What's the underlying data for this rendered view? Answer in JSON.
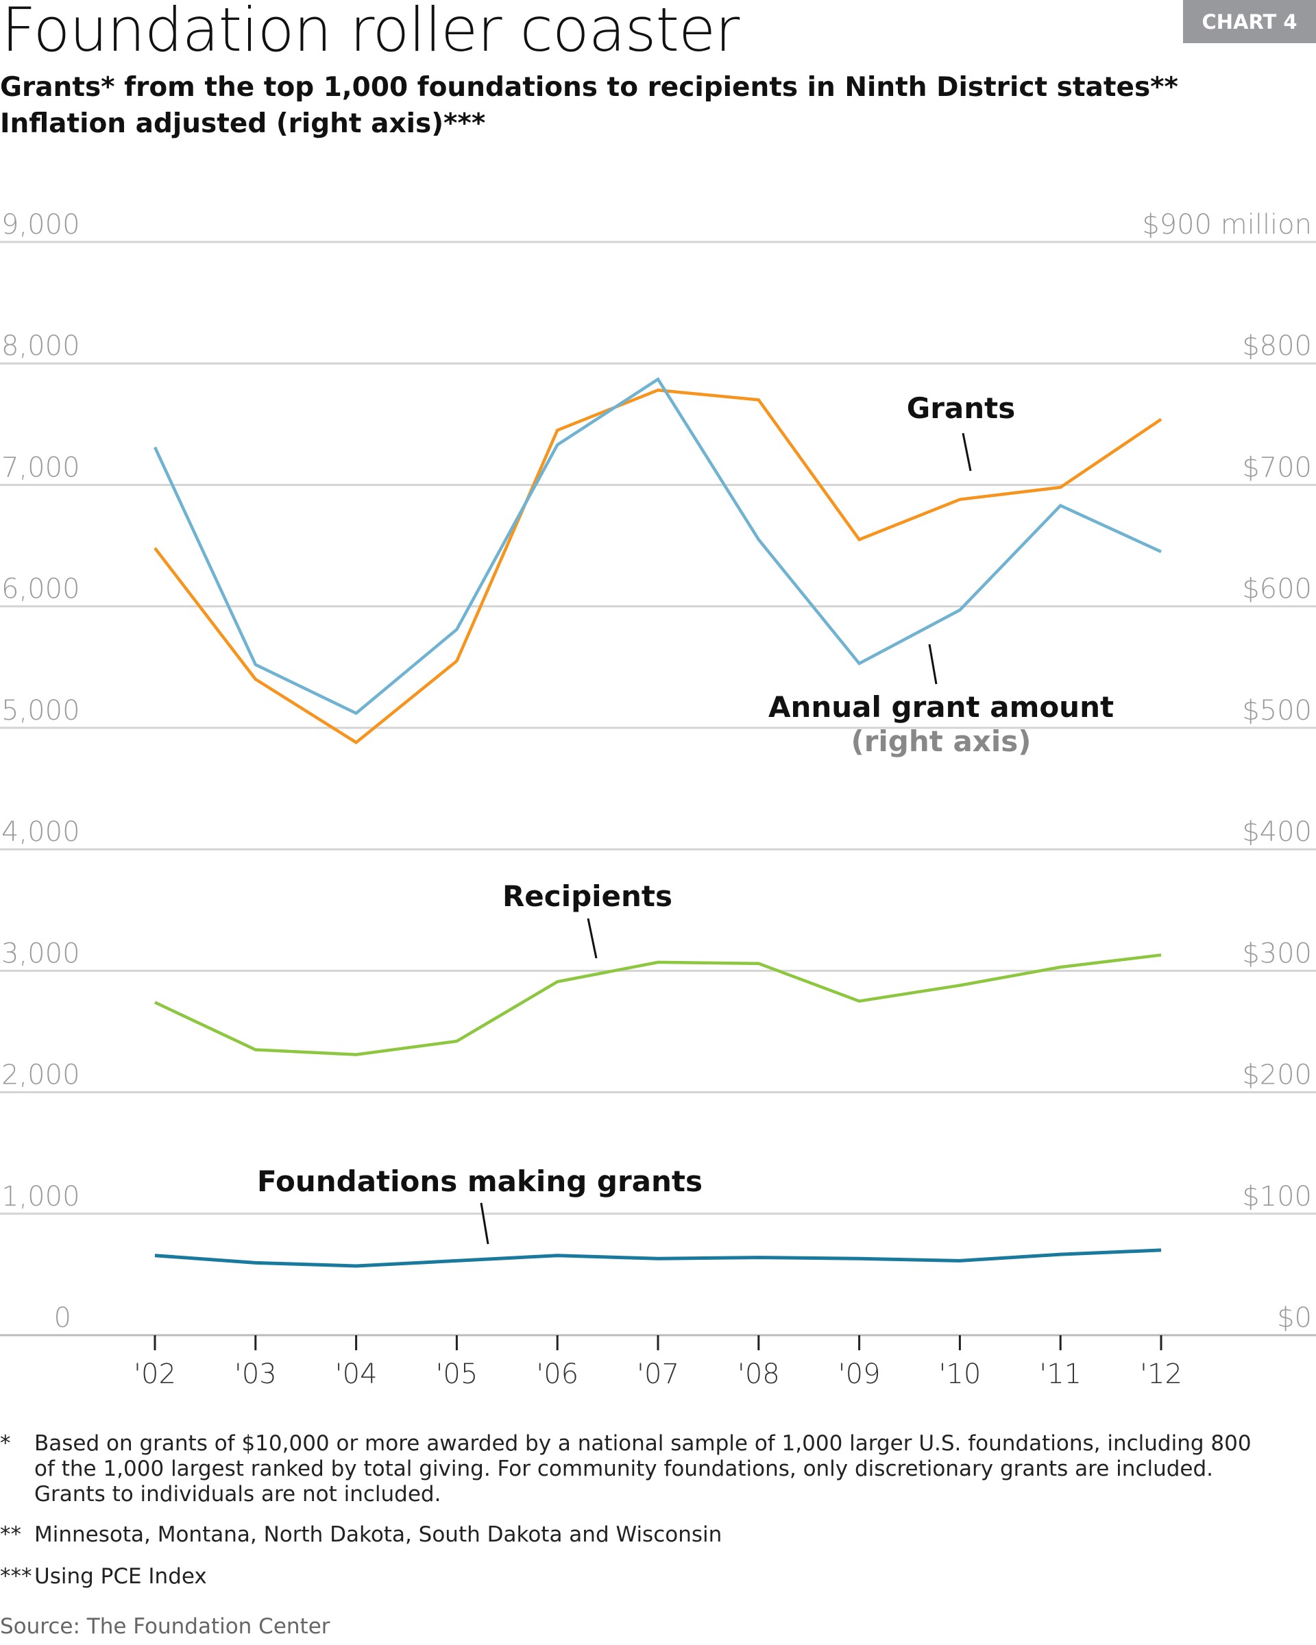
{
  "badge": "CHART 4",
  "title": "Foundation roller coaster",
  "subtitle_1": "Grants* from the top 1,000 foundations to recipients in Ninth District states**",
  "subtitle_2": "Inflation adjusted (right axis)***",
  "chart_data": {
    "type": "line",
    "categories": [
      "'02",
      "'03",
      "'04",
      "'05",
      "'06",
      "'07",
      "'08",
      "'09",
      "'10",
      "'11",
      "'12"
    ],
    "left_axis": {
      "ylim": [
        0,
        9000
      ],
      "ticks": [
        "0",
        "1,000",
        "2,000",
        "3,000",
        "4,000",
        "5,000",
        "6,000",
        "7,000",
        "8,000",
        "9,000"
      ]
    },
    "right_axis": {
      "ylim": [
        0,
        900
      ],
      "unit": "million",
      "ticks": [
        "$0",
        "$100",
        "$200",
        "$300",
        "$400",
        "$500",
        "$600",
        "$700",
        "$800",
        "$900 million"
      ]
    },
    "grid": true,
    "series": [
      {
        "name": "Grants",
        "axis": "left",
        "color": "#f7941d",
        "values": [
          6480,
          5400,
          4880,
          5550,
          7450,
          7780,
          7700,
          6550,
          6880,
          6980,
          7540
        ]
      },
      {
        "name": "Annual grant amount",
        "name_note": "(right axis)",
        "axis": "right",
        "color": "#6fb2d2",
        "values": [
          731,
          552,
          512,
          581,
          733,
          787,
          655,
          553,
          597,
          683,
          645
        ]
      },
      {
        "name": "Recipients",
        "axis": "left",
        "color": "#8dc63f",
        "values": [
          2740,
          2350,
          2310,
          2420,
          2910,
          3070,
          3060,
          2750,
          2880,
          3030,
          3130
        ]
      },
      {
        "name": "Foundations making grants",
        "axis": "left",
        "color": "#1a7a9e",
        "values": [
          656,
          596,
          570,
          613,
          656,
          630,
          640,
          630,
          613,
          665,
          700
        ]
      }
    ]
  },
  "footnotes": [
    {
      "marker": "*",
      "lines": [
        "Based on grants of $10,000 or more awarded by a national sample of 1,000 larger U.S. foundations, including 800",
        "of the 1,000 largest ranked by total giving. For community foundations, only discretionary grants are included.",
        "Grants to individuals are not included."
      ]
    },
    {
      "marker": "**",
      "lines": [
        "Minnesota, Montana, North Dakota, South Dakota and Wisconsin"
      ]
    },
    {
      "marker": "***",
      "lines": [
        "Using PCE Index"
      ]
    }
  ],
  "source": "Source: The Foundation Center"
}
